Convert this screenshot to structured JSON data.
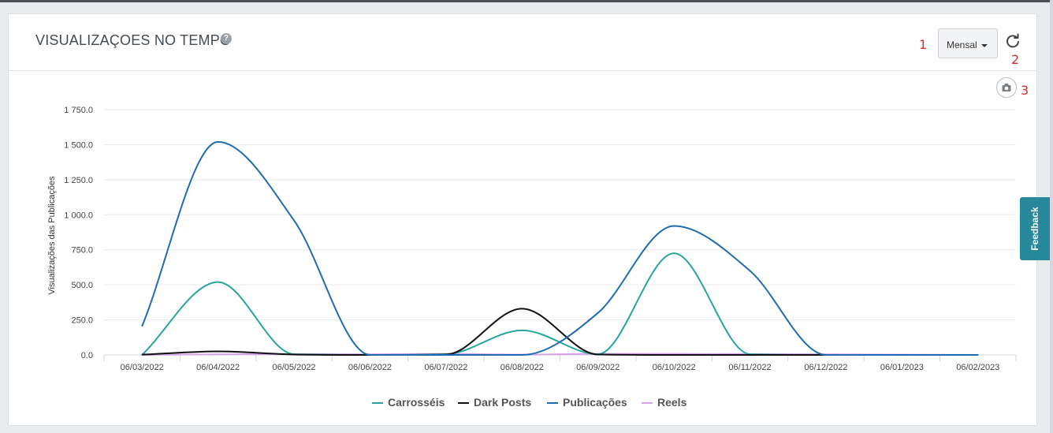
{
  "panel": {
    "title": "VISUALIZAÇOES NO TEMPO",
    "help_icon": "question-circle-icon",
    "period_select": {
      "selected": "Mensal"
    },
    "refresh_icon": "refresh-icon",
    "camera_icon": "camera-icon"
  },
  "annotations": [
    "1",
    "2",
    "3"
  ],
  "feedback": {
    "label": "Feedback"
  },
  "colors": {
    "carrosseis": "#26a69a",
    "dark_posts": "#111111",
    "publicacoes": "#1f6bb0",
    "reels": "#d8a2ea"
  },
  "chart_data": {
    "type": "line",
    "ylabel": "Visualizações das Publicações",
    "ylim": [
      0,
      1750
    ],
    "y_ticks": [
      "1 750.0",
      "1 500.0",
      "1 250.0",
      "1 000.0",
      "750.0",
      "500.0",
      "250.0",
      "0.0"
    ],
    "y_tick_values": [
      1750,
      1500,
      1250,
      1000,
      750,
      500,
      250,
      0
    ],
    "categories": [
      "06/03/2022",
      "06/04/2022",
      "06/05/2022",
      "06/06/2022",
      "06/07/2022",
      "06/08/2022",
      "06/09/2022",
      "06/10/2022",
      "06/11/2022",
      "06/12/2022",
      "06/01/2023",
      "06/02/2023"
    ],
    "grid": true,
    "legend_position": "bottom",
    "series": [
      {
        "name": "Carrosséis",
        "color": "#26a69a",
        "values": [
          0,
          520,
          5,
          0,
          5,
          175,
          5,
          725,
          5,
          0,
          0,
          0
        ]
      },
      {
        "name": "Dark Posts",
        "color": "#111111",
        "values": [
          2,
          25,
          3,
          0,
          3,
          330,
          3,
          0,
          0,
          0,
          0,
          0
        ]
      },
      {
        "name": "Publicações",
        "color": "#1f6bb0",
        "values": [
          205,
          1520,
          960,
          0,
          0,
          0,
          300,
          920,
          600,
          0,
          0,
          0
        ]
      },
      {
        "name": "Reels",
        "color": "#d8a2ea",
        "values": [
          0,
          4,
          6,
          4,
          8,
          2,
          8,
          8,
          6,
          4,
          2,
          0
        ]
      }
    ]
  }
}
